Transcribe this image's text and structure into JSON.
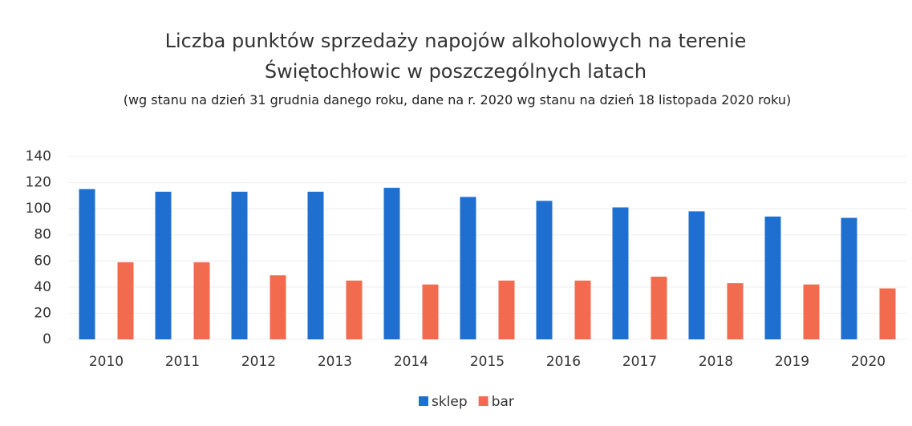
{
  "chart_data": {
    "type": "bar",
    "title": "Liczba punktów sprzedaży napojów alkoholowych na terenie Świętochłowic w poszczególnych latach",
    "subtitle": "(wg stanu na dzień 31 grudnia danego roku, dane na r. 2020 wg stanu na dzień 18 listopada 2020 roku)",
    "categories": [
      "2010",
      "2011",
      "2012",
      "2013",
      "2014",
      "2015",
      "2016",
      "2017",
      "2018",
      "2019",
      "2020"
    ],
    "series": [
      {
        "name": "sklep",
        "color": "#1f6fd0",
        "values": [
          115,
          113,
          113,
          113,
          116,
          109,
          106,
          101,
          98,
          94,
          93
        ]
      },
      {
        "name": "bar",
        "color": "#f26b4f",
        "values": [
          59,
          59,
          49,
          45,
          42,
          45,
          45,
          48,
          43,
          42,
          39
        ]
      }
    ],
    "ylim": [
      0,
      140
    ],
    "yticks": [
      0,
      20,
      40,
      60,
      80,
      100,
      120,
      140
    ],
    "grid": true,
    "legend": "bottom"
  }
}
